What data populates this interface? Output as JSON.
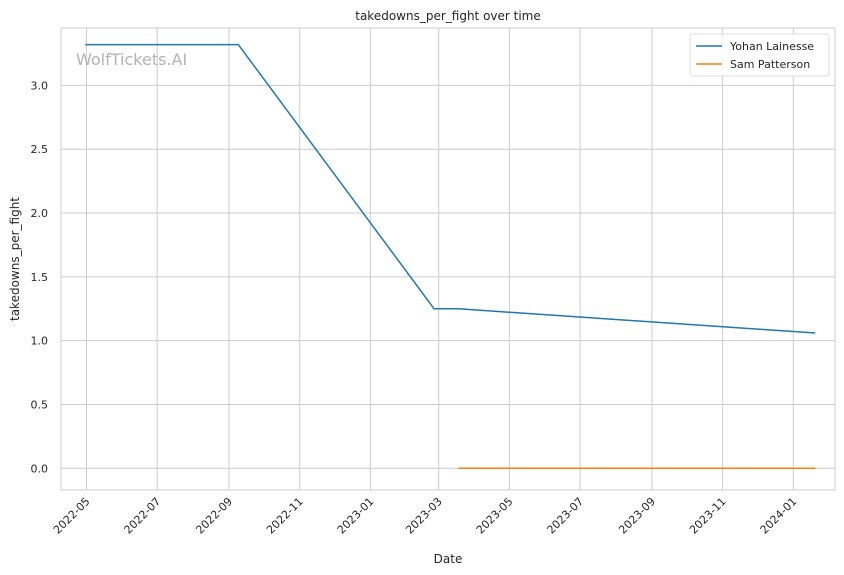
{
  "chart_data": {
    "type": "line",
    "title": "takedowns_per_fight over time",
    "xlabel": "Date",
    "ylabel": "takedowns_per_fight",
    "x_axis_type": "date",
    "xlim": [
      "2022-04-09",
      "2024-02-06"
    ],
    "ylim": [
      -0.17,
      3.45
    ],
    "x_ticks": [
      "2022-05",
      "2022-07",
      "2022-09",
      "2022-11",
      "2023-01",
      "2023-03",
      "2023-05",
      "2023-07",
      "2023-09",
      "2023-11",
      "2024-01"
    ],
    "y_ticks": [
      0.0,
      0.5,
      1.0,
      1.5,
      2.0,
      2.5,
      3.0
    ],
    "y_tick_labels": [
      "0.0",
      "0.5",
      "1.0",
      "1.5",
      "2.0",
      "2.5",
      "3.0"
    ],
    "grid": true,
    "legend_position": "top-right",
    "watermark": "WolfTickets.AI",
    "series": [
      {
        "name": "Yohan Lainesse",
        "color": "#1f77b4",
        "points": [
          {
            "x": "2022-04-30",
            "y": 3.32
          },
          {
            "x": "2022-09-09",
            "y": 3.32
          },
          {
            "x": "2023-02-25",
            "y": 1.25
          },
          {
            "x": "2023-03-18",
            "y": 1.25
          },
          {
            "x": "2024-01-20",
            "y": 1.06
          }
        ]
      },
      {
        "name": "Sam Patterson",
        "color": "#ff7f0e",
        "points": [
          {
            "x": "2023-03-18",
            "y": 0.0
          },
          {
            "x": "2024-01-20",
            "y": 0.0
          }
        ]
      }
    ]
  }
}
